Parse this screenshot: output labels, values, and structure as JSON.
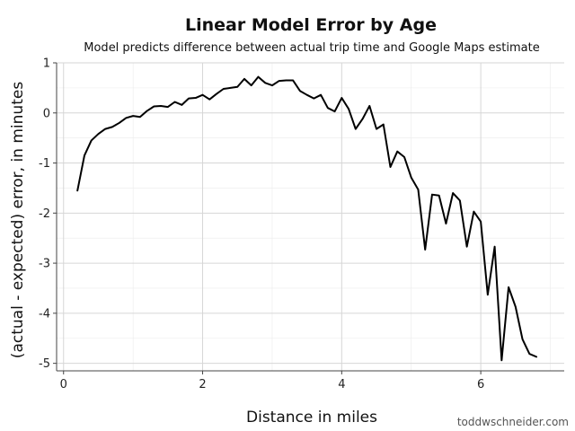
{
  "chart_data": {
    "type": "line",
    "title": "Linear Model Error by Age",
    "subtitle": "Model predicts difference between actual trip time and Google Maps estimate",
    "xlabel": "Distance in miles",
    "ylabel": "(actual - expected) error, in minutes",
    "xlim": [
      -0.1,
      7.2
    ],
    "ylim": [
      -5.15,
      1.0
    ],
    "xticks": [
      0,
      2,
      4,
      6
    ],
    "yticks": [
      1,
      0,
      -1,
      -2,
      -3,
      -4,
      -5
    ],
    "grid": true,
    "line_color": "#000000",
    "series": [
      {
        "x": [
          0.2,
          0.3,
          0.4,
          0.5,
          0.6,
          0.7,
          0.8,
          0.9,
          1.0,
          1.1,
          1.2,
          1.3,
          1.4,
          1.5,
          1.6,
          1.7,
          1.8,
          1.9,
          2.0,
          2.1,
          2.2,
          2.3,
          2.4,
          2.5,
          2.6,
          2.7,
          2.8,
          2.9,
          3.0,
          3.1,
          3.2,
          3.3,
          3.4,
          3.5,
          3.6,
          3.7,
          3.8,
          3.9,
          4.0,
          4.1,
          4.2,
          4.3,
          4.4,
          4.5,
          4.6,
          4.7,
          4.8,
          4.9,
          5.0,
          5.1,
          5.2,
          5.3,
          5.4,
          5.5,
          5.6,
          5.7,
          5.8,
          5.9,
          6.0,
          6.1,
          6.2,
          6.3,
          6.4,
          6.5,
          6.6,
          6.7,
          6.8
        ],
        "values": [
          -1.55,
          -0.85,
          -0.55,
          -0.42,
          -0.32,
          -0.28,
          -0.2,
          -0.1,
          -0.06,
          -0.08,
          0.04,
          0.13,
          0.14,
          0.12,
          0.22,
          0.16,
          0.29,
          0.3,
          0.36,
          0.27,
          0.38,
          0.48,
          0.5,
          0.52,
          0.68,
          0.55,
          0.72,
          0.6,
          0.55,
          0.64,
          0.65,
          0.65,
          0.44,
          0.36,
          0.29,
          0.36,
          0.1,
          0.03,
          0.3,
          0.08,
          -0.32,
          -0.12,
          0.14,
          -0.32,
          -0.23,
          -1.08,
          -0.77,
          -0.88,
          -1.29,
          -1.53,
          -2.73,
          -1.63,
          -1.65,
          -2.21,
          -1.6,
          -1.75,
          -2.67,
          -1.97,
          -2.17,
          -3.63,
          -2.67,
          -4.94,
          -3.48,
          -3.87,
          -4.52,
          -4.81,
          -4.87
        ]
      }
    ]
  },
  "footer": {
    "credit": "toddwschneider.com"
  }
}
